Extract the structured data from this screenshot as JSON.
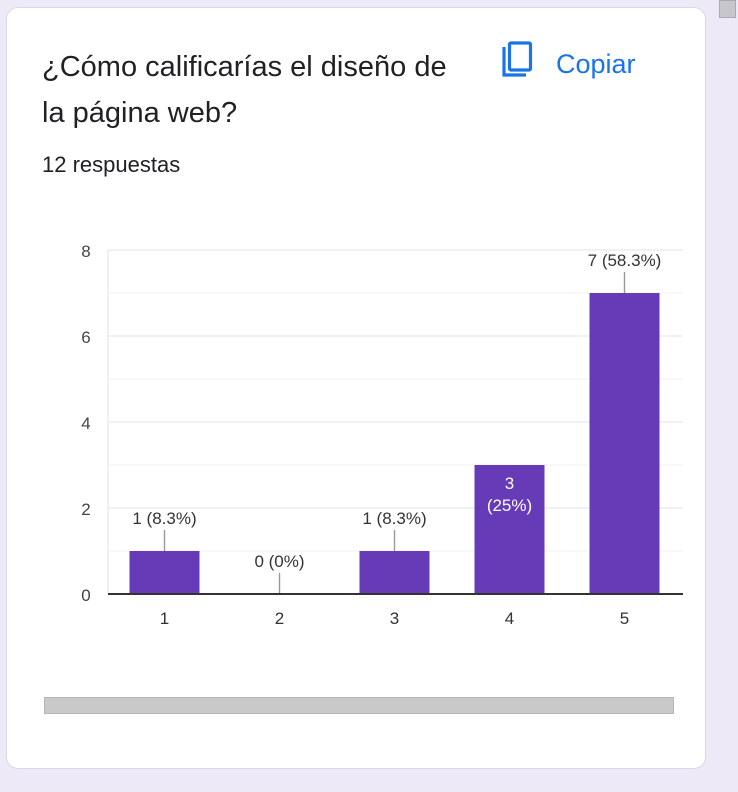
{
  "card": {
    "title": "¿Cómo calificarías el diseño de la página web?",
    "copy_label": "Copiar",
    "copy_icon": "copy-icon",
    "response_count": "12 respuestas"
  },
  "colors": {
    "bar": "#673ab7",
    "accent": "#1a73e8",
    "grid": "#e8e8e8",
    "axis": "#333333"
  },
  "chart_data": {
    "type": "bar",
    "title": "¿Cómo calificarías el diseño de la página web?",
    "categories": [
      "1",
      "2",
      "3",
      "4",
      "5"
    ],
    "values": [
      1,
      0,
      1,
      3,
      7
    ],
    "labels": [
      "1 (8.3%)",
      "0 (0%)",
      "1 (8.3%)",
      "3 (25%)",
      "7 (58.3%)"
    ],
    "y_ticks": [
      0,
      2,
      4,
      6,
      8
    ],
    "ylim": [
      0,
      8
    ],
    "xlabel": "",
    "ylabel": "",
    "grid": true
  }
}
